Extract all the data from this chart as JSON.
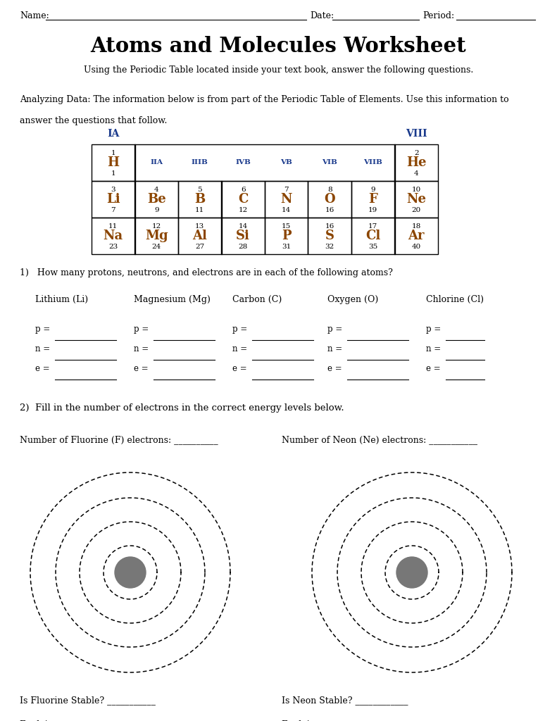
{
  "title": "Atoms and Molecules Worksheet",
  "subtitle": "Using the Periodic Table located inside your text book, answer the following questions.",
  "analyzing_text": "Analyzing Data: The information below is from part of the Periodic Table of Elements. Use this information to\nanswer the questions that follow.",
  "bg_color": "#ffffff",
  "text_color": "#000000",
  "table_header_color": "#1a3a8c",
  "element_color": "#8b4500",
  "periodic_data": [
    [
      {
        "num": "1",
        "sym": "H",
        "mass": "1"
      },
      null,
      null,
      null,
      null,
      null,
      null,
      {
        "num": "2",
        "sym": "He",
        "mass": "4"
      }
    ],
    [
      {
        "num": "3",
        "sym": "Li",
        "mass": "7"
      },
      {
        "num": "4",
        "sym": "Be",
        "mass": "9"
      },
      {
        "num": "5",
        "sym": "B",
        "mass": "11"
      },
      {
        "num": "6",
        "sym": "C",
        "mass": "12"
      },
      {
        "num": "7",
        "sym": "N",
        "mass": "14"
      },
      {
        "num": "8",
        "sym": "O",
        "mass": "16"
      },
      {
        "num": "9",
        "sym": "F",
        "mass": "19"
      },
      {
        "num": "10",
        "sym": "Ne",
        "mass": "20"
      }
    ],
    [
      {
        "num": "11",
        "sym": "Na",
        "mass": "23"
      },
      {
        "num": "12",
        "sym": "Mg",
        "mass": "24"
      },
      {
        "num": "13",
        "sym": "Al",
        "mass": "27"
      },
      {
        "num": "14",
        "sym": "Si",
        "mass": "28"
      },
      {
        "num": "15",
        "sym": "P",
        "mass": "31"
      },
      {
        "num": "16",
        "sym": "S",
        "mass": "32"
      },
      {
        "num": "17",
        "sym": "Cl",
        "mass": "35"
      },
      {
        "num": "18",
        "sym": "Ar",
        "mass": "40"
      }
    ]
  ],
  "sub_headers": [
    "IIA",
    "IIIB",
    "IVB",
    "VB",
    "VIB",
    "VIIB"
  ],
  "sub_cols": [
    1,
    2,
    3,
    4,
    5,
    6
  ],
  "q1_text": "1)   How many protons, neutrons, and electrons are in each of the following atoms?",
  "q1_atoms": [
    "Lithium (Li)",
    "Magnesium (Mg)",
    "Carbon (C)",
    "Oxygen (O)",
    "Chlorine (Cl)"
  ],
  "q2_text": "2)  Fill in the number of electrons in the correct energy levels below.",
  "fluorine_label": "Number of Fluorine (F) electrons: __________",
  "neon_label": "Number of Neon (Ne) electrons: ___________",
  "fluorine_stable": "Is Fluorine Stable? ___________",
  "fluorine_explain": "Explain your answer: _____________________",
  "neon_stable": "Is Neon Stable? ____________",
  "neon_explain": "Explain your answer: ____________________",
  "nucleus_color": "#777777"
}
